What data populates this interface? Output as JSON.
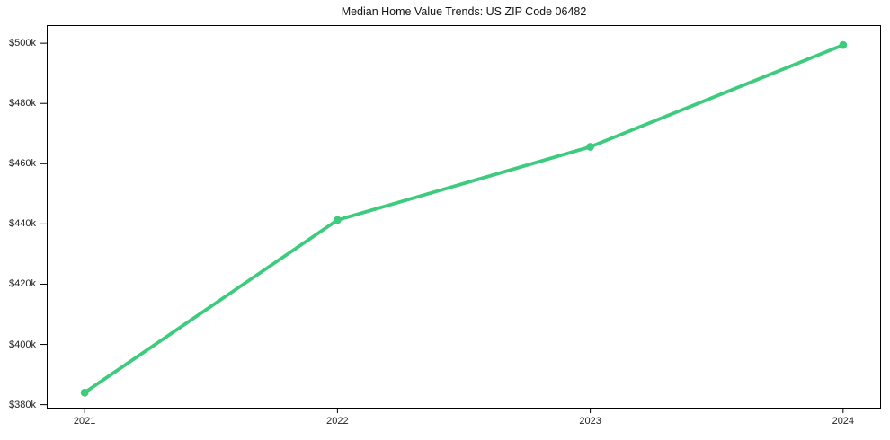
{
  "figure": {
    "title": "Median Home Value Trends: US ZIP Code 06482"
  },
  "colors": {
    "line": "#3dcb7d",
    "axis": "#000000",
    "tick_text": "#1f1f1f",
    "title_text": "#141414",
    "background": "#ffffff"
  },
  "chart_data": {
    "type": "line",
    "title": "Median Home Value Trends: US ZIP Code 06482",
    "xlabel": "",
    "ylabel": "",
    "grid": false,
    "legend": false,
    "marker": "circle",
    "line_color": "#3dcb7d",
    "series": [
      {
        "name": "Median home value (USD)",
        "x": [
          2021,
          2022,
          2023,
          2024
        ],
        "y": [
          384000,
          441300,
          465600,
          499400
        ]
      }
    ],
    "x_ticks": [
      2021,
      2022,
      2023,
      2024
    ],
    "x_tick_labels": [
      "2021",
      "2022",
      "2023",
      "2024"
    ],
    "y_ticks": [
      380000,
      400000,
      420000,
      440000,
      460000,
      480000,
      500000
    ],
    "y_tick_labels": [
      "$380k",
      "$400k",
      "$420k",
      "$440k",
      "$460k",
      "$480k",
      "$500k"
    ],
    "xlim": [
      2020.85,
      2024.15
    ],
    "ylim": [
      378700,
      506000
    ]
  }
}
